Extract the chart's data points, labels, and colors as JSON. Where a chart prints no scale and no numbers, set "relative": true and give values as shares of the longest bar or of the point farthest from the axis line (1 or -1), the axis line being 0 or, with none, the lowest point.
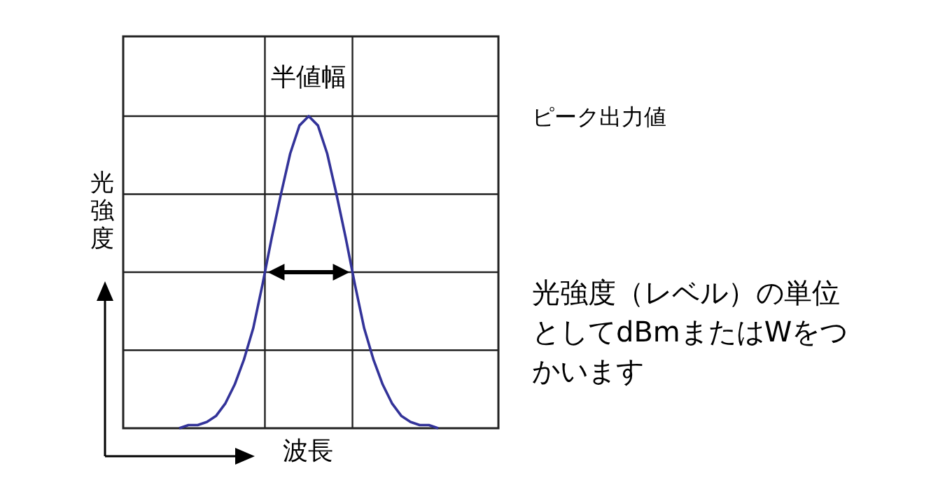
{
  "chart_data": {
    "type": "line",
    "relative": true,
    "xlabel": "波長",
    "ylabel": "光強度",
    "grid": "y",
    "categories": [
      null,
      null,
      null,
      null,
      null,
      null,
      null,
      null,
      null,
      null,
      null,
      null,
      null,
      null,
      null,
      null,
      null,
      null,
      null,
      null,
      null,
      null,
      null,
      null,
      null,
      null,
      null,
      null,
      null
    ],
    "series": [
      {
        "color": "#333399",
        "values": [
          0.0,
          0.01,
          0.01,
          0.02,
          0.04,
          0.08,
          0.14,
          0.22,
          0.32,
          0.46,
          0.61,
          0.75,
          0.88,
          0.97,
          1.0,
          0.97,
          0.88,
          0.75,
          0.61,
          0.46,
          0.32,
          0.22,
          0.14,
          0.08,
          0.04,
          0.02,
          0.01,
          0.01,
          0.0
        ]
      }
    ],
    "annotations": [
      "半値幅",
      "ピーク出力値",
      "光強度（レベル）の単位としてdBmまたはWをつかいます"
    ]
  }
}
